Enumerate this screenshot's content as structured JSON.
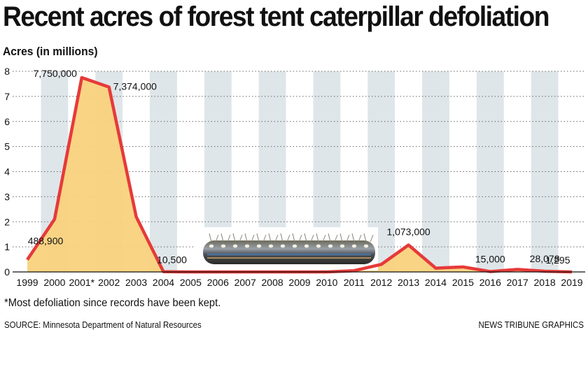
{
  "chart_data": {
    "type": "area",
    "title": "Recent acres of forest tent caterpillar defoliation",
    "ylabel": "Acres (in millions)",
    "xlabel": "",
    "categories": [
      "1999",
      "2000",
      "2001*",
      "2002",
      "2003",
      "2004",
      "2005",
      "2006",
      "2007",
      "2008",
      "2009",
      "2010",
      "2011",
      "2012",
      "2013",
      "2014",
      "2015",
      "2016",
      "2017",
      "2018",
      "2019"
    ],
    "values": [
      0.4889,
      2.1,
      7.75,
      7.374,
      2.2,
      0.0105,
      0.0,
      0.0,
      0.0,
      0.0,
      0.0,
      0.0,
      0.05,
      0.3,
      1.073,
      0.15,
      0.2,
      0.015,
      0.1,
      0.028078,
      0.001295
    ],
    "data_labels": [
      {
        "index": 0,
        "text": "488,900"
      },
      {
        "index": 2,
        "text": "7,750,000"
      },
      {
        "index": 3,
        "text": "7,374,000"
      },
      {
        "index": 5,
        "text": "10,500"
      },
      {
        "index": 14,
        "text": "1,073,000"
      },
      {
        "index": 17,
        "text": "15,000"
      },
      {
        "index": 19,
        "text": "28,078"
      },
      {
        "index": 20,
        "text": "1,295"
      }
    ],
    "yticks": [
      0,
      1,
      2,
      3,
      4,
      5,
      6,
      7,
      8
    ],
    "ylim": [
      0,
      8
    ],
    "grid": true,
    "colors": {
      "line": "#e63a3a",
      "fill": "#f9d27d",
      "stripe": "#dfe6ea",
      "grid": "#666666"
    }
  },
  "footnote": "*Most defoliation since records have been kept.",
  "source": "SOURCE: Minnesota Department of Natural Resources",
  "credit": "NEWS TRIBUNE GRAPHICS",
  "image": {
    "name": "caterpillar-photo"
  }
}
